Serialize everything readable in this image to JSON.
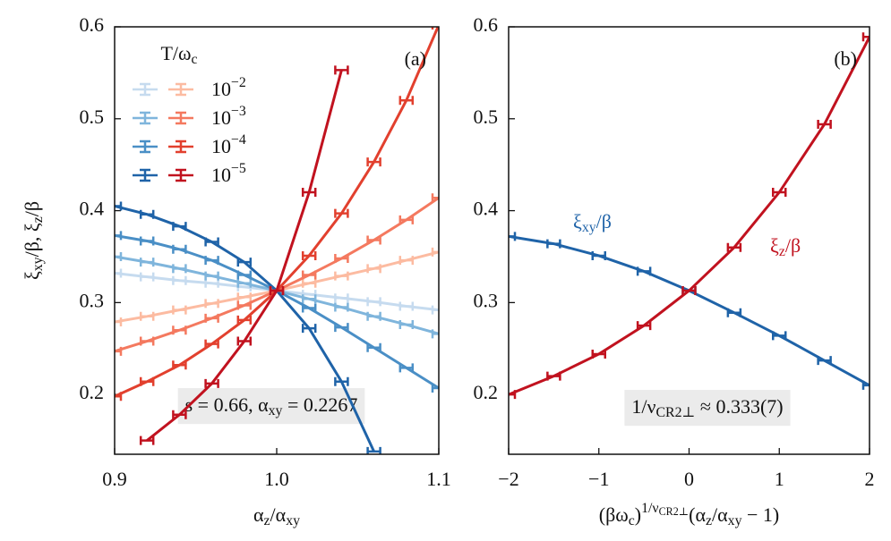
{
  "chart_data": [
    {
      "type": "line",
      "panel_label": "(a)",
      "x_label": [
        {
          "text": "α"
        },
        {
          "text": "z",
          "pos": "sub"
        },
        {
          "text": "/α"
        },
        {
          "text": "xy",
          "pos": "sub"
        }
      ],
      "y_label": [
        {
          "text": "ξ"
        },
        {
          "text": "xy",
          "pos": "sub"
        },
        {
          "text": "/β,  ξ"
        },
        {
          "text": "z",
          "pos": "sub"
        },
        {
          "text": "/β"
        }
      ],
      "annotation": [
        {
          "text": "s = 0.66, α"
        },
        {
          "text": "xy",
          "pos": "sub"
        },
        {
          "text": " = 0.2267"
        }
      ],
      "legend": {
        "title": [
          {
            "text": "T/ω"
          },
          {
            "text": "c",
            "pos": "sub"
          }
        ],
        "labels": [
          [
            {
              "text": "10"
            },
            {
              "text": "−2",
              "pos": "sup"
            }
          ],
          [
            {
              "text": "10"
            },
            {
              "text": "−3",
              "pos": "sup"
            }
          ],
          [
            {
              "text": "10"
            },
            {
              "text": "−4",
              "pos": "sup"
            }
          ],
          [
            {
              "text": "10"
            },
            {
              "text": "−5",
              "pos": "sup"
            }
          ]
        ]
      },
      "x": [
        0.9,
        0.92,
        0.94,
        0.96,
        0.98,
        1.0,
        1.02,
        1.04,
        1.06,
        1.08,
        1.1
      ],
      "series": [
        {
          "color": "#c6dbef",
          "values": [
            0.332,
            0.328,
            0.324,
            0.321,
            0.317,
            0.313,
            0.309,
            0.305,
            0.301,
            0.296,
            0.292
          ]
        },
        {
          "color": "#7fb5dc",
          "values": [
            0.35,
            0.344,
            0.337,
            0.329,
            0.321,
            0.313,
            0.304,
            0.295,
            0.285,
            0.276,
            0.266
          ]
        },
        {
          "color": "#4a8fc6",
          "values": [
            0.373,
            0.367,
            0.358,
            0.346,
            0.33,
            0.313,
            0.294,
            0.273,
            0.251,
            0.229,
            0.207
          ]
        },
        {
          "color": "#1f63a8",
          "values": [
            0.405,
            0.396,
            0.383,
            0.366,
            0.344,
            0.313,
            0.272,
            0.214,
            0.138,
            null,
            null
          ]
        },
        {
          "color": "#fcbba1",
          "values": [
            0.279,
            0.285,
            0.292,
            0.299,
            0.306,
            0.313,
            0.321,
            0.329,
            0.337,
            0.346,
            0.355
          ]
        },
        {
          "color": "#f4795f",
          "values": [
            0.247,
            0.258,
            0.27,
            0.283,
            0.297,
            0.313,
            0.33,
            0.348,
            0.368,
            0.39,
            0.414
          ]
        },
        {
          "color": "#e2402e",
          "values": [
            0.198,
            0.214,
            0.232,
            0.255,
            0.281,
            0.313,
            0.351,
            0.397,
            0.453,
            0.52,
            0.602
          ]
        },
        {
          "color": "#c1121f",
          "values": [
            null,
            0.15,
            0.178,
            0.212,
            0.258,
            0.313,
            0.42,
            0.553,
            null,
            null,
            null
          ]
        }
      ],
      "xlim": [
        0.9,
        1.1
      ],
      "xticks": [
        0.9,
        {
          "value": 1,
          "label": "1.0"
        },
        1.1
      ],
      "ylim": [
        0.135,
        0.6
      ],
      "yticks": [
        0.2,
        0.3,
        0.4,
        0.5,
        0.6
      ]
    },
    {
      "type": "line",
      "panel_label": "(b)",
      "x_label": [
        {
          "text": "(βω"
        },
        {
          "text": "c",
          "pos": "sub"
        },
        {
          "text": ")"
        },
        {
          "text": "1/ν",
          "pos": "sup"
        },
        {
          "text": "CR2⊥",
          "pos": "supsub"
        },
        {
          "text": "(α"
        },
        {
          "text": "z",
          "pos": "sub"
        },
        {
          "text": "/α"
        },
        {
          "text": "xy",
          "pos": "sub"
        },
        {
          "text": " − 1)"
        }
      ],
      "annotation": [
        {
          "text": "1/ν"
        },
        {
          "text": "CR2⊥",
          "pos": "sub"
        },
        {
          "text": " ≈ 0.333(7)"
        }
      ],
      "curve_labels": [
        [
          {
            "text": "ξ"
          },
          {
            "text": "xy",
            "pos": "sub"
          },
          {
            "text": "/β"
          }
        ],
        [
          {
            "text": "ξ"
          },
          {
            "text": "z",
            "pos": "sub"
          },
          {
            "text": "/β"
          }
        ]
      ],
      "x": [
        -2,
        -1.5,
        -1,
        -0.5,
        0,
        0.5,
        1,
        1.5,
        2
      ],
      "series": [
        {
          "color": "#1f63a8",
          "values": [
            0.372,
            0.364,
            0.351,
            0.334,
            0.313,
            0.289,
            0.264,
            0.237,
            0.21
          ]
        },
        {
          "color": "#c1121f",
          "values": [
            0.2,
            0.22,
            0.244,
            0.275,
            0.313,
            0.36,
            0.42,
            0.494,
            0.589
          ]
        }
      ],
      "xlim": [
        -2,
        2
      ],
      "xticks": [
        {
          "value": -2,
          "label": "−2"
        },
        {
          "value": -1,
          "label": "−1"
        },
        0,
        1,
        2
      ],
      "ylim": [
        0.135,
        0.6
      ],
      "yticks": [
        0.2,
        0.3,
        0.4,
        0.5,
        0.6
      ]
    }
  ]
}
